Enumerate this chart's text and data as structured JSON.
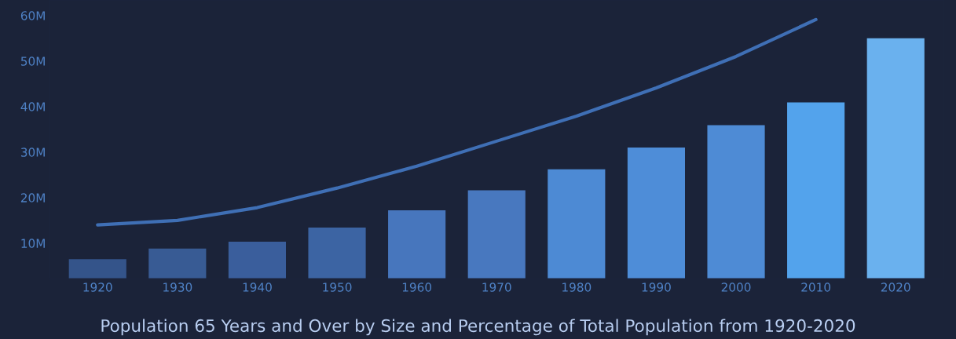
{
  "chart_data": {
    "type": "bar",
    "title": "Population 65 Years and Over by Size and Percentage of Total Population from 1920-2020",
    "categories": [
      "1920",
      "1930",
      "1940",
      "1950",
      "1960",
      "1970",
      "1980",
      "1990",
      "2000",
      "2010",
      "2020"
    ],
    "series": [
      {
        "colors": [
          "#34548a",
          "#385b94",
          "#3a5e9c",
          "#3c64a3",
          "#4776bd",
          "#4878bf",
          "#4d8ad4",
          "#4e8dd8",
          "#4e8bd5",
          "#53a3ec",
          "#6ab1ee"
        ],
        "values": [
          6.5,
          8.8,
          10.3,
          13.4,
          17.2,
          21.6,
          26.2,
          31.0,
          35.9,
          40.9,
          55.0
        ]
      },
      {
        "type": "line",
        "color": "#3f6fb5",
        "values": [
          14.0,
          15.0,
          17.8,
          22.1,
          26.9,
          32.4,
          37.9,
          44.1,
          51.0,
          59.1,
          null
        ]
      }
    ],
    "ylim": [
      2.2,
      63.4
    ],
    "yticks": [
      {
        "value": 10,
        "label": "10M"
      },
      {
        "value": 20,
        "label": "20M"
      },
      {
        "value": 30,
        "label": "30M"
      },
      {
        "value": 40,
        "label": "40M"
      },
      {
        "value": 50,
        "label": "50M"
      },
      {
        "value": 60,
        "label": "60M"
      }
    ],
    "grid": false,
    "legend": false,
    "marker": "none"
  }
}
